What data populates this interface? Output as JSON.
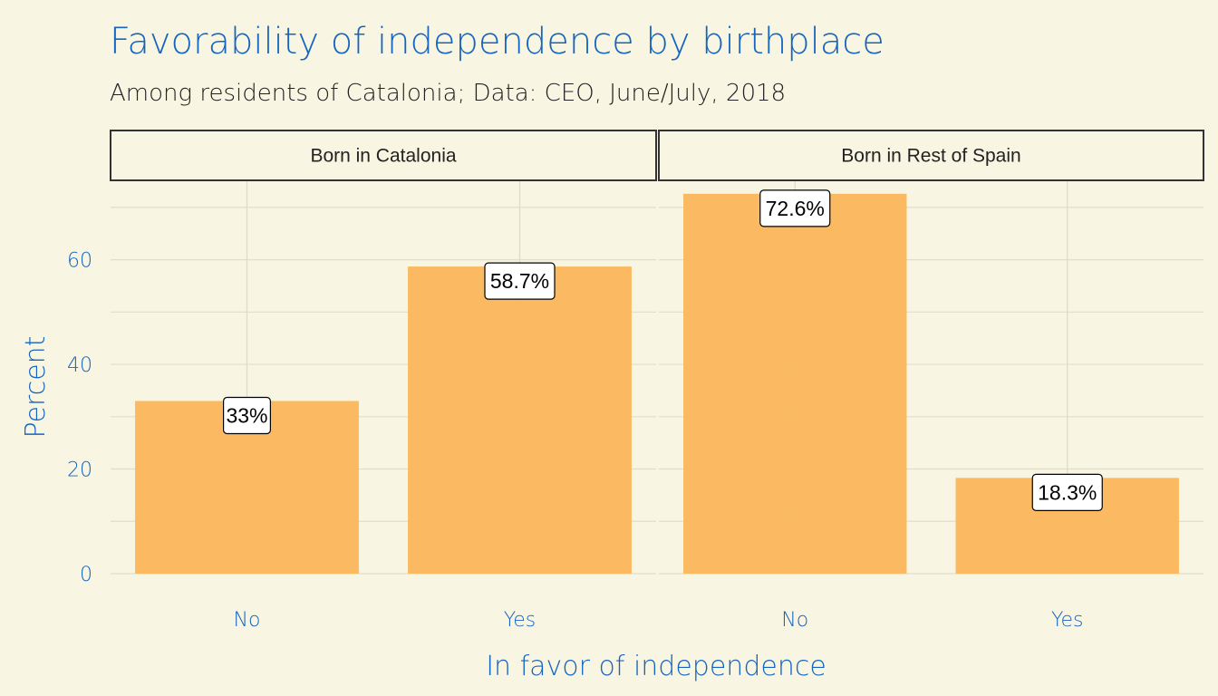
{
  "colors": {
    "background": "#f8f5e2",
    "accent": "#1565c0",
    "bar_fill": "#fbb65a",
    "text_dark": "#222222"
  },
  "chart_data": {
    "type": "bar",
    "title": "Favorability of independence by birthplace",
    "subtitle": "Among residents of Catalonia; Data: CEO, June/July, 2018",
    "xlabel": "In favor of independence",
    "ylabel": "Percent",
    "ylim": [
      0,
      75
    ],
    "yticks": [
      0,
      20,
      40,
      60
    ],
    "grid": true,
    "legend": "none",
    "facets": [
      {
        "label": "Born in Catalonia",
        "categories": [
          "No",
          "Yes"
        ],
        "values": [
          33,
          58.7
        ],
        "data_labels": [
          "33%",
          "58.7%"
        ]
      },
      {
        "label": "Born in Rest of Spain",
        "categories": [
          "No",
          "Yes"
        ],
        "values": [
          72.6,
          18.3
        ],
        "data_labels": [
          "72.6%",
          "18.3%"
        ]
      }
    ]
  }
}
